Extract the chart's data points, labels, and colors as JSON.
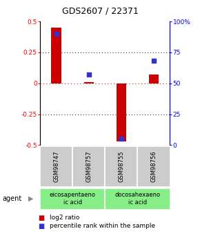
{
  "title": "GDS2607 / 22371",
  "samples": [
    "GSM98747",
    "GSM98757",
    "GSM98755",
    "GSM98756"
  ],
  "log2_ratio": [
    0.45,
    0.01,
    -0.47,
    0.07
  ],
  "percentile_rank": [
    90,
    57,
    5,
    68
  ],
  "agents": [
    {
      "label": "eicosapentaeno\nic acid",
      "start": 0,
      "end": 2
    },
    {
      "label": "docosahexaeno\nic acid",
      "start": 2,
      "end": 4
    }
  ],
  "agent_label": "agent",
  "ylim_left": [
    -0.5,
    0.5
  ],
  "ylim_right": [
    0,
    100
  ],
  "yticks_left": [
    -0.5,
    -0.25,
    0,
    0.25,
    0.5
  ],
  "yticks_right": [
    0,
    25,
    50,
    75,
    100
  ],
  "ytick_left_labels": [
    "-0.5",
    "-0.25",
    "0",
    "0.25",
    "0.5"
  ],
  "ytick_right_labels": [
    "0",
    "25",
    "50",
    "75",
    "100%"
  ],
  "bar_color": "#cc0000",
  "square_color": "#3333cc",
  "bar_width": 0.3,
  "square_size": 25,
  "sample_box_color": "#cccccc",
  "agent_box_color": "#88ee88",
  "legend_red_label": "log2 ratio",
  "legend_blue_label": "percentile rank within the sample",
  "title_fontsize": 9,
  "tick_fontsize": 6.5,
  "legend_fontsize": 6.5,
  "sample_fontsize": 6,
  "agent_fontsize": 6
}
